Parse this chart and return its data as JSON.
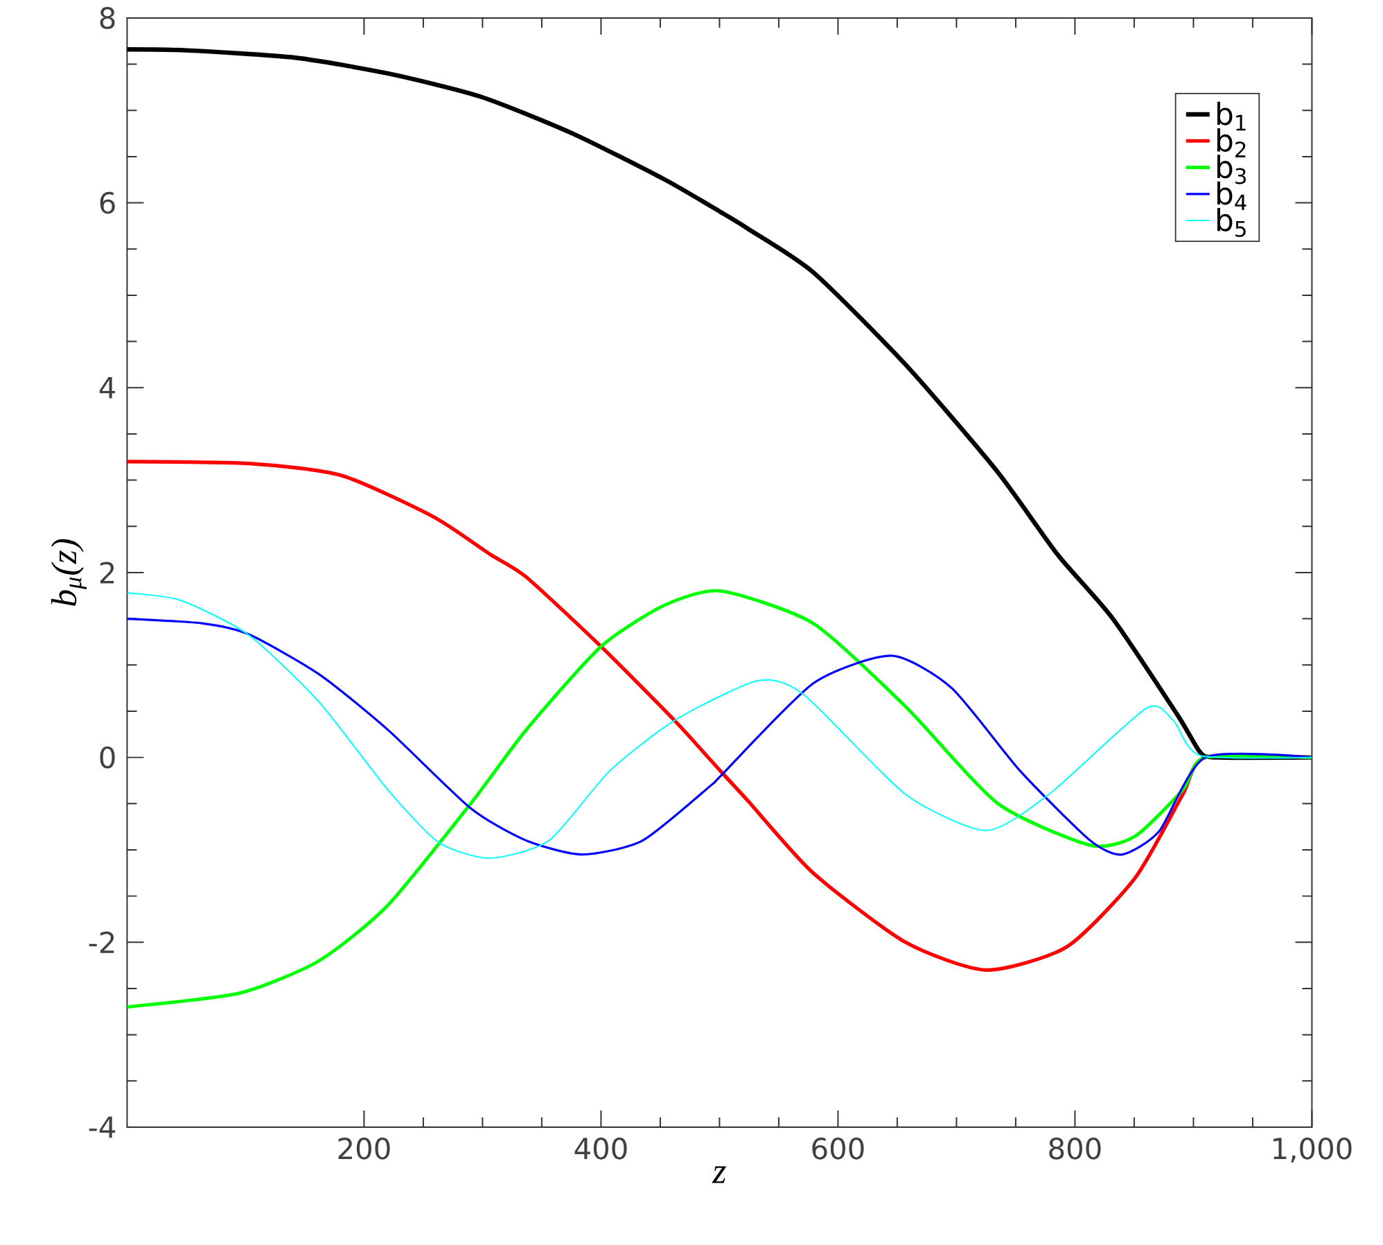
{
  "chart_data": {
    "type": "line",
    "xlabel": "z",
    "ylabel": "b$_{μ}$(z)",
    "xlim": [
      0,
      1000
    ],
    "ylim": [
      -4,
      8
    ],
    "xticks": [
      200,
      400,
      600,
      800,
      {
        "value": 1000,
        "label": "1,000"
      }
    ],
    "yticks": [
      -4,
      -2,
      0,
      2,
      4,
      6,
      8
    ],
    "legend": "top right",
    "grid": false,
    "marker": "none",
    "line_style": "solid",
    "series": [
      {
        "name": "b$_{1}$",
        "color": "#000000",
        "x": [
          0,
          50,
          142,
          220,
          298,
          376,
          454,
          501,
          524,
          579,
          657,
          734,
          785,
          832,
          887,
          906,
          920,
          1000
        ],
        "values": [
          7.66,
          7.65,
          7.57,
          7.4,
          7.15,
          6.75,
          6.25,
          5.9,
          5.72,
          5.25,
          4.25,
          3.1,
          2.2,
          1.5,
          0.45,
          0.05,
          0.0,
          0.0
        ]
      },
      {
        "name": "b$_{2}$",
        "color": "#ff0000",
        "x": [
          0,
          103,
          181,
          259,
          306,
          337,
          400,
          462,
          501,
          524,
          579,
          657,
          725,
          793,
          851,
          891,
          910,
          1000
        ],
        "values": [
          3.2,
          3.18,
          3.05,
          2.6,
          2.2,
          1.95,
          1.2,
          0.4,
          -0.15,
          -0.47,
          -1.25,
          -2.0,
          -2.3,
          -2.05,
          -1.3,
          -0.4,
          0.0,
          0.0
        ]
      },
      {
        "name": "b$_{3}$",
        "color": "#00ff00",
        "x": [
          0,
          95,
          162,
          220,
          290,
          337,
          400,
          454,
          501,
          579,
          657,
          735,
          813,
          851,
          891,
          910,
          1000
        ],
        "values": [
          -2.7,
          -2.55,
          -2.2,
          -1.6,
          -0.5,
          0.3,
          1.2,
          1.65,
          1.8,
          1.45,
          0.55,
          -0.5,
          -0.95,
          -0.85,
          -0.35,
          0.0,
          0.0
        ]
      },
      {
        "name": "b$_{4}$",
        "color": "#0000ff",
        "x": [
          0,
          64,
          103,
          162,
          220,
          290,
          337,
          384,
          435,
          493,
          501,
          579,
          645,
          696,
          754,
          813,
          840,
          871,
          910,
          1000
        ],
        "values": [
          1.5,
          1.45,
          1.33,
          0.9,
          0.3,
          -0.55,
          -0.9,
          -1.05,
          -0.9,
          -0.3,
          -0.2,
          0.8,
          1.1,
          0.75,
          -0.15,
          -0.9,
          -1.05,
          -0.8,
          0.0,
          0.0
        ]
      },
      {
        "name": "b$_{5}$",
        "color": "#00ffff",
        "x": [
          0,
          45,
          102,
          162,
          220,
          263,
          306,
          356,
          407,
          462,
          532,
          571,
          657,
          725,
          778,
          860,
          883,
          906,
          1000
        ],
        "values": [
          1.78,
          1.7,
          1.33,
          0.6,
          -0.35,
          -0.92,
          -1.09,
          -0.9,
          -0.15,
          0.4,
          0.83,
          0.68,
          -0.4,
          -0.79,
          -0.4,
          0.53,
          0.4,
          0.02,
          0.0
        ]
      }
    ]
  }
}
